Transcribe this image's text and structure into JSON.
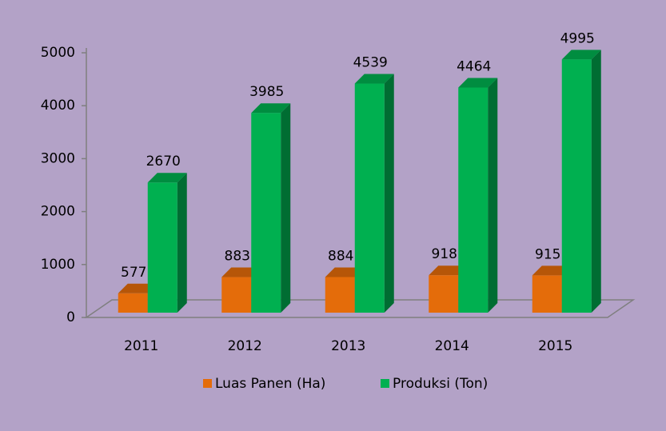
{
  "chart_data": {
    "type": "bar3d",
    "categories": [
      "2011",
      "2012",
      "2013",
      "2014",
      "2015"
    ],
    "series": [
      {
        "name": "Luas Panen (Ha)",
        "color": "#e46c0a",
        "values": [
          577,
          883,
          884,
          918,
          915
        ]
      },
      {
        "name": "Produksi (Ton)",
        "color": "#00b050",
        "values": [
          2670,
          3985,
          4539,
          4464,
          4995
        ]
      }
    ],
    "ylim": [
      0,
      5000
    ],
    "yticks": [
      0,
      1000,
      2000,
      3000,
      4000,
      5000
    ],
    "legend": "bottom"
  }
}
